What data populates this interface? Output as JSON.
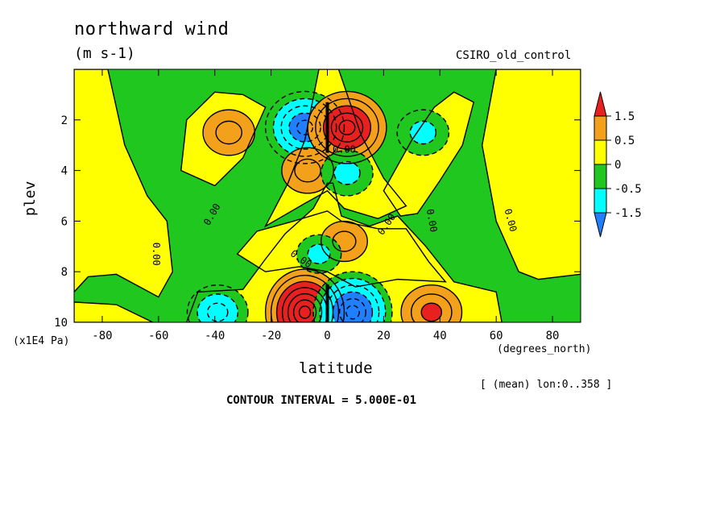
{
  "header": {
    "title": "northward wind",
    "units": "(m s-1)",
    "model": "CSIRO_old_control"
  },
  "footer": {
    "subset": "[ (mean) lon:0..358 ]",
    "contour_interval": "CONTOUR INTERVAL = 5.000E-01"
  },
  "colorbar": {
    "labels": [
      "1.5",
      "0.5",
      "0",
      "-0.5",
      "-1.5"
    ],
    "colors": [
      "#e8201f",
      "#f3a01a",
      "#ffff00",
      "#1fc71f",
      "#00ffff",
      "#1f7fff"
    ]
  },
  "chart_data": {
    "type": "heatmap",
    "title": "northward wind",
    "subtitle": "(m s-1)",
    "xlabel": "latitude",
    "x_units": "(degrees_north)",
    "ylabel": "plev",
    "y_units": "(x1E4 Pa)",
    "xlim": [
      -90,
      90
    ],
    "ylim": [
      10,
      0
    ],
    "x_ticks": [
      -80,
      -60,
      -40,
      -20,
      0,
      20,
      40,
      60,
      80
    ],
    "y_ticks": [
      2,
      4,
      6,
      8,
      10
    ],
    "levels": [
      -1.5,
      -0.5,
      0,
      0.5,
      1.5
    ],
    "contour_labels": [
      "0.00",
      "0.00",
      "0.00",
      "0.00",
      "0.00",
      "0.00",
      "0.00"
    ],
    "features": [
      {
        "sign": "negative",
        "lat": -8,
        "plev": 2.3,
        "peak": -2.5
      },
      {
        "sign": "positive",
        "lat": 7,
        "plev": 2.3,
        "peak": 2.5
      },
      {
        "sign": "positive",
        "lat": -8,
        "plev": 9.6,
        "peak": 3.5
      },
      {
        "sign": "negative",
        "lat": 9,
        "plev": 9.6,
        "peak": -3.0
      },
      {
        "sign": "negative",
        "lat": -39,
        "plev": 9.6,
        "peak": -1.5
      },
      {
        "sign": "positive",
        "lat": 37,
        "plev": 9.6,
        "peak": 1.5
      },
      {
        "sign": "positive",
        "lat": -35,
        "plev": 2.5,
        "peak": 1.0
      },
      {
        "sign": "negative",
        "lat": 34,
        "plev": 2.5,
        "peak": -1.0
      },
      {
        "sign": "positive",
        "lat": -7,
        "plev": 4.0,
        "peak": 1.0
      },
      {
        "sign": "negative",
        "lat": 7,
        "plev": 4.1,
        "peak": -1.0
      },
      {
        "sign": "positive",
        "lat": 6,
        "plev": 6.8,
        "peak": 0.7
      },
      {
        "sign": "negative",
        "lat": -3,
        "plev": 7.3,
        "peak": -0.6
      }
    ]
  }
}
